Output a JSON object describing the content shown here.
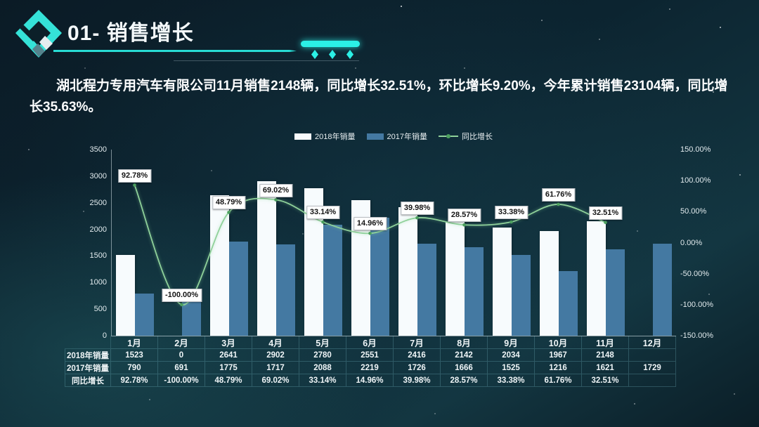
{
  "header": {
    "title": "01- 销售增长"
  },
  "summary": {
    "text": "湖北程力专用汽车有限公司11月销售2148辆，同比增长32.51%，环比增长9.20%，今年累计销售23104辆，同比增长35.63%。"
  },
  "colors": {
    "accent_cyan": "#2bf0e6",
    "bar_2018": "#f7fbfd",
    "bar_2017": "#4479a2",
    "growth_line": "#8fd19a",
    "growth_dot": "#4da05f"
  },
  "chart_data": {
    "type": "combo-bar-line",
    "title": "",
    "grid": false,
    "legend_position": "top-center",
    "categories": [
      "1月",
      "2月",
      "3月",
      "4月",
      "5月",
      "6月",
      "7月",
      "8月",
      "9月",
      "10月",
      "11月",
      "12月"
    ],
    "series": [
      {
        "name": "2018年销量",
        "kind": "bar",
        "axis": "left",
        "color": "#f7fbfd",
        "values": [
          1523,
          0,
          2641,
          2902,
          2780,
          2551,
          2416,
          2142,
          2034,
          1967,
          2148,
          null
        ]
      },
      {
        "name": "2017年销量",
        "kind": "bar",
        "axis": "left",
        "color": "#4479a2",
        "values": [
          790,
          691,
          1775,
          1717,
          2088,
          2219,
          1726,
          1666,
          1525,
          1216,
          1621,
          1729
        ]
      },
      {
        "name": "同比增长",
        "kind": "line",
        "axis": "right",
        "color": "#8fd19a",
        "values": [
          92.78,
          -100.0,
          48.79,
          69.02,
          33.14,
          14.96,
          39.98,
          28.57,
          33.38,
          61.76,
          32.51,
          null
        ],
        "labels": [
          "92.78%",
          "-100.00%",
          "48.79%",
          "69.02%",
          "33.14%",
          "14.96%",
          "39.98%",
          "28.57%",
          "33.38%",
          "61.76%",
          "32.51%",
          null
        ]
      }
    ],
    "left_axis": {
      "min": 0,
      "max": 3500,
      "step": 500,
      "tick_labels": [
        "0",
        "500",
        "1000",
        "1500",
        "2000",
        "2500",
        "3000",
        "3500"
      ]
    },
    "right_axis": {
      "min": -150,
      "max": 150,
      "step": 50,
      "tick_labels": [
        "-150.00%",
        "-100.00%",
        "-50.00%",
        "0.00%",
        "50.00%",
        "100.00%",
        "150.00%"
      ]
    }
  },
  "table": {
    "corner_label": "",
    "columns": [
      "1月",
      "2月",
      "3月",
      "4月",
      "5月",
      "6月",
      "7月",
      "8月",
      "9月",
      "10月",
      "11月",
      "12月"
    ],
    "rows": [
      {
        "label": "2018年销量",
        "values": [
          "1523",
          "0",
          "2641",
          "2902",
          "2780",
          "2551",
          "2416",
          "2142",
          "2034",
          "1967",
          "2148",
          ""
        ]
      },
      {
        "label": "2017年销量",
        "values": [
          "790",
          "691",
          "1775",
          "1717",
          "2088",
          "2219",
          "1726",
          "1666",
          "1525",
          "1216",
          "1621",
          "1729"
        ]
      },
      {
        "label": "同比增长",
        "values": [
          "92.78%",
          "-100.00%",
          "48.79%",
          "69.02%",
          "33.14%",
          "14.96%",
          "39.98%",
          "28.57%",
          "33.38%",
          "61.76%",
          "32.51%",
          ""
        ]
      }
    ]
  }
}
